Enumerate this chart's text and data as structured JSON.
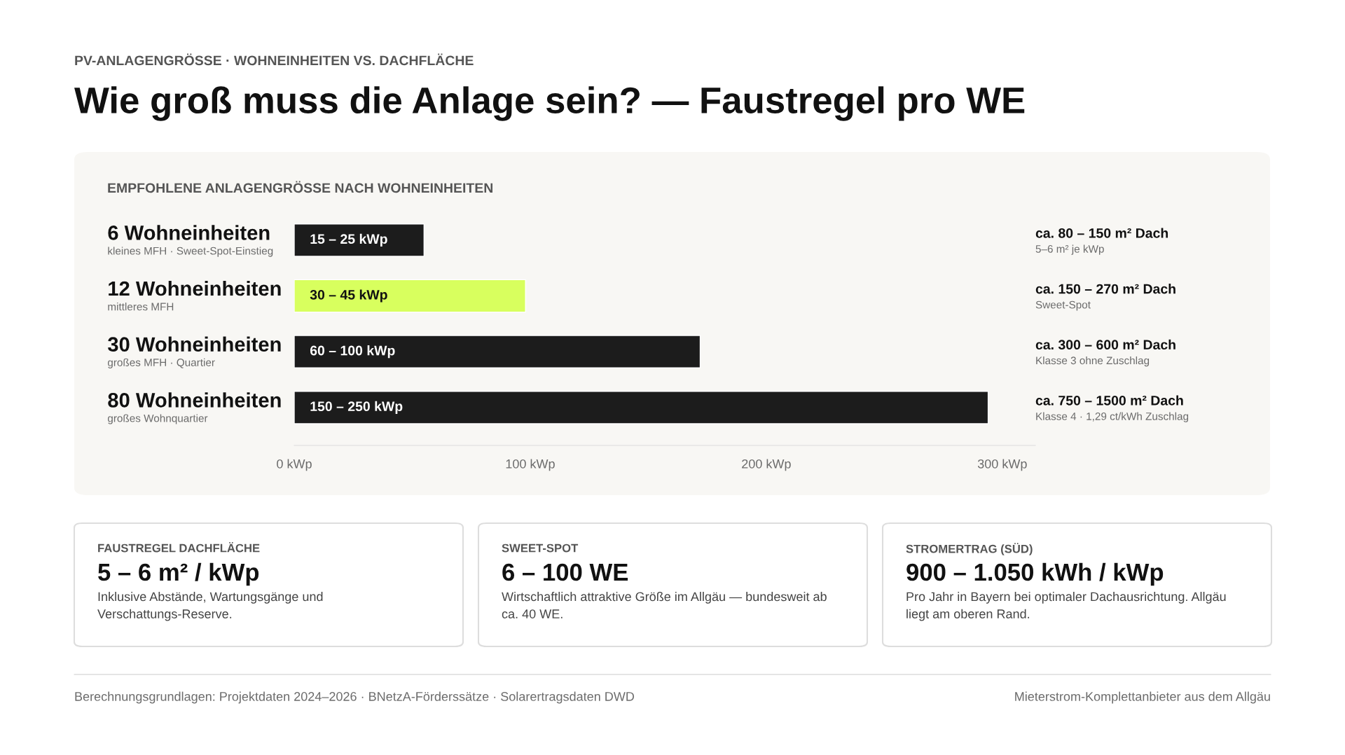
{
  "chart_data": [
    {
      "type": "other",
      "subtitle": "PV-ANLAGENGRÖSSE · WOHNEINHEITEN VS. DACHFLÄCHE",
      "title": "Wie groß muss die Anlage sein? — Faustregel pro WE",
      "annotations": [
        "Berechnungsgrundlagen: Projektdaten 2024–2026 · BNetzA-Förderssätze · Solarertragsdaten DWD",
        "Mieterstrom-Komplettanbieter aus dem Allgäu"
      ]
    },
    {
      "type": "bar",
      "orientation": "horizontal",
      "title": "EMPFOHLENE ANLAGENGRÖSSE NACH WOHNEINHEITEN",
      "categories": [
        "6 Wohneinheiten",
        "12 Wohneinheiten",
        "30 Wohneinheiten",
        "80 Wohneinheiten"
      ],
      "values": [
        55,
        98,
        172,
        294
      ],
      "colors": [
        "#1c1c1c",
        "#d8ff5e",
        "#1c1c1c",
        "#1c1c1c"
      ],
      "xlim": [
        0,
        314
      ],
      "xticks": [
        {
          "value": 0,
          "label": "0 kWp"
        },
        {
          "value": 100,
          "label": "100 kWp"
        },
        {
          "value": 200,
          "label": "200 kWp"
        },
        {
          "value": 300,
          "label": "300 kWp"
        }
      ],
      "grid": false,
      "legend": false,
      "annotations": [
        "15 – 25 kWp",
        "kleines MFH · Sweet-Spot-Einstieg",
        "ca. 80 – 150 m² Dach",
        "5–6 m² je kWp",
        "30 – 45 kWp",
        "mittleres MFH",
        "ca. 150 – 270 m² Dach",
        "Sweet-Spot",
        "60 – 100 kWp",
        "großes MFH · Quartier",
        "ca. 300 – 600 m² Dach",
        "Klasse 3 ohne Zuschlag",
        "150 – 250 kWp",
        "großes Wohnquartier",
        "ca. 750 – 1500 m² Dach",
        "Klasse 4 · 1,29 ct/kWh Zuschlag"
      ]
    },
    {
      "type": "other",
      "title": "FAUSTREGEL DACHFLÄCHE",
      "subtitle": "5 – 6 m² / kWp",
      "annotations": [
        "Inklusive Abstände, Wartungsgänge und Verschattungs-Reserve."
      ]
    },
    {
      "type": "other",
      "title": "SWEET-SPOT",
      "subtitle": "6 – 100 WE",
      "annotations": [
        "Wirtschaftlich attraktive Größe im Allgäu — bundesweit ab ca. 40 WE."
      ]
    },
    {
      "type": "other",
      "title": "STROMERTRAG (SÜD)",
      "subtitle": "900 – 1.050 kWh / kWp",
      "annotations": [
        "Pro Jahr in Bayern bei optimaler Dachausrichtung. Allgäu liegt am oberen Rand."
      ]
    }
  ]
}
